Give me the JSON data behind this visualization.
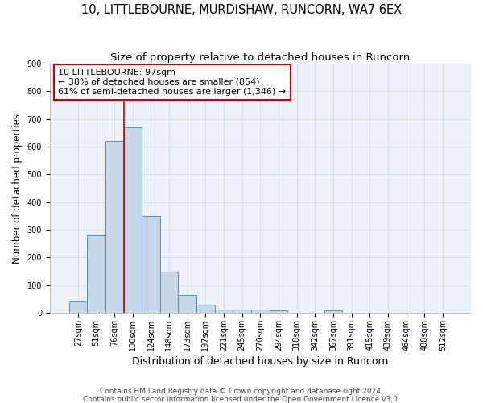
{
  "title": "10, LITTLEBOURNE, MURDISHAW, RUNCORN, WA7 6EX",
  "subtitle": "Size of property relative to detached houses in Runcorn",
  "xlabel": "Distribution of detached houses by size in Runcorn",
  "ylabel": "Number of detached properties",
  "footer_line1": "Contains HM Land Registry data © Crown copyright and database right 2024.",
  "footer_line2": "Contains public sector information licensed under the Open Government Licence v3.0.",
  "bar_labels": [
    "27sqm",
    "51sqm",
    "76sqm",
    "100sqm",
    "124sqm",
    "148sqm",
    "173sqm",
    "197sqm",
    "221sqm",
    "245sqm",
    "270sqm",
    "294sqm",
    "318sqm",
    "342sqm",
    "367sqm",
    "391sqm",
    "415sqm",
    "439sqm",
    "464sqm",
    "488sqm",
    "512sqm"
  ],
  "bar_values": [
    40,
    280,
    620,
    670,
    350,
    148,
    65,
    30,
    12,
    12,
    12,
    10,
    0,
    0,
    8,
    0,
    0,
    0,
    0,
    0,
    0
  ],
  "bar_color": "#c8d8e8",
  "bar_edge_color": "#6090b0",
  "bar_edge_width": 0.7,
  "property_line_color": "#cc0000",
  "property_line_index": 3,
  "annotation_line1": "10 LITTLEBOURNE: 97sqm",
  "annotation_line2": "← 38% of detached houses are smaller (854)",
  "annotation_line3": "61% of semi-detached houses are larger (1,346) →",
  "annotation_box_color": "#cc0000",
  "ylim": [
    0,
    900
  ],
  "yticks": [
    0,
    100,
    200,
    300,
    400,
    500,
    600,
    700,
    800,
    900
  ],
  "grid_color": "#d0d8e8",
  "background_color": "#edf2f8",
  "title_fontsize": 10.5,
  "subtitle_fontsize": 9.5,
  "xlabel_fontsize": 9,
  "ylabel_fontsize": 8.5,
  "tick_fontsize": 7,
  "annotation_fontsize": 8,
  "footer_fontsize": 6.5
}
